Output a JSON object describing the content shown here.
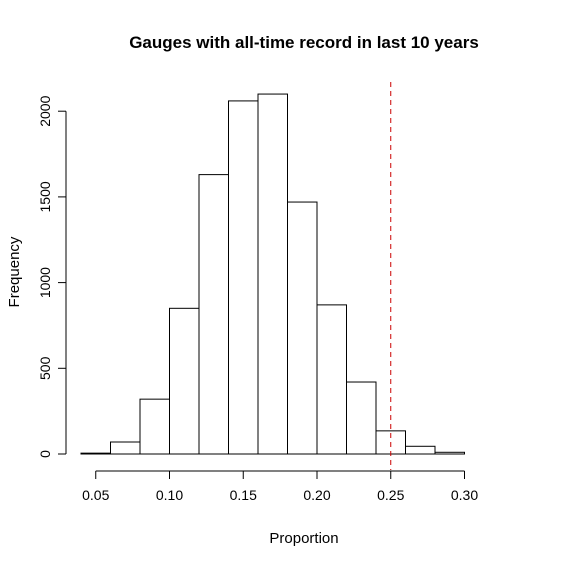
{
  "chart_data": {
    "type": "bar",
    "title": "Gauges with all-time record in last 10 years",
    "xlabel": "Proportion",
    "ylabel": "Frequency",
    "bins": [
      {
        "x0": 0.04,
        "x1": 0.06,
        "count": 5
      },
      {
        "x0": 0.06,
        "x1": 0.08,
        "count": 70
      },
      {
        "x0": 0.08,
        "x1": 0.1,
        "count": 320
      },
      {
        "x0": 0.1,
        "x1": 0.12,
        "count": 850
      },
      {
        "x0": 0.12,
        "x1": 0.14,
        "count": 1630
      },
      {
        "x0": 0.14,
        "x1": 0.16,
        "count": 2060
      },
      {
        "x0": 0.16,
        "x1": 0.18,
        "count": 2100
      },
      {
        "x0": 0.18,
        "x1": 0.2,
        "count": 1470
      },
      {
        "x0": 0.2,
        "x1": 0.22,
        "count": 870
      },
      {
        "x0": 0.22,
        "x1": 0.24,
        "count": 420
      },
      {
        "x0": 0.24,
        "x1": 0.26,
        "count": 135
      },
      {
        "x0": 0.26,
        "x1": 0.28,
        "count": 45
      },
      {
        "x0": 0.28,
        "x1": 0.3,
        "count": 10
      },
      {
        "x0": 0.3,
        "x1": 0.32,
        "count": 0
      }
    ],
    "x_ticks": [
      "0.05",
      "0.10",
      "0.15",
      "0.20",
      "0.25",
      "0.30"
    ],
    "y_ticks": [
      "0",
      "500",
      "1000",
      "1500",
      "2000"
    ],
    "xlim": [
      0.04,
      0.32
    ],
    "ylim": [
      0,
      2100
    ],
    "reference_line": {
      "x": 0.25,
      "color": "#cc0000",
      "style": "dashed"
    },
    "bar_fill": "#ffffff",
    "bar_stroke": "#000000",
    "grid": false
  }
}
